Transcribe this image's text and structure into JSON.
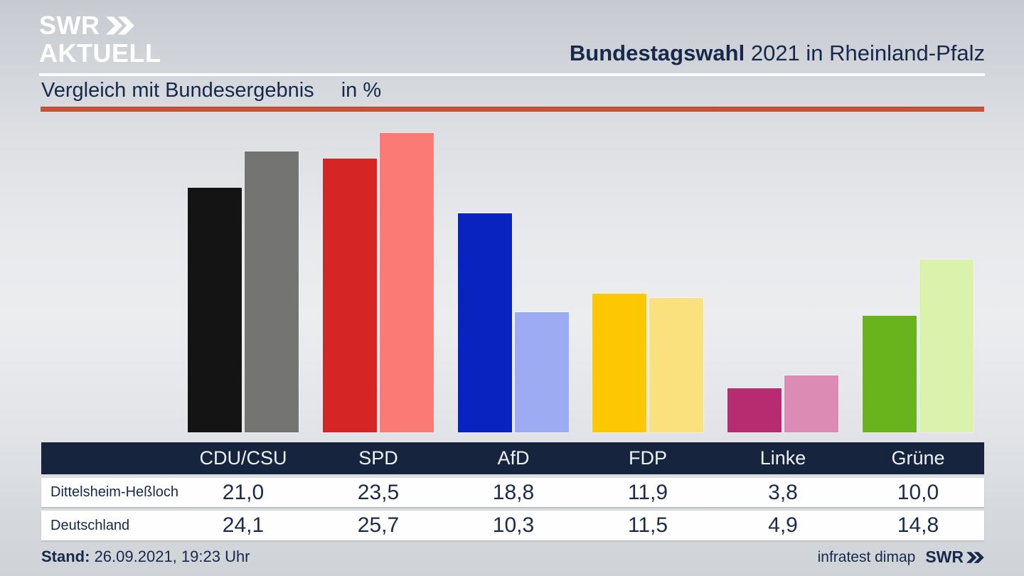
{
  "header": {
    "logo_line1": "SWR",
    "logo_line2": "AKTUELL",
    "title_bold": "Bundestagswahl",
    "title_rest": " 2021 in Rheinland-Pfalz"
  },
  "subtitle": {
    "text": "Vergleich mit Bundesergebnis",
    "unit": "in %"
  },
  "chart_data": {
    "type": "bar",
    "title": "Vergleich mit Bundesergebnis in %",
    "xlabel": "",
    "ylabel": "",
    "unit": "%",
    "ylim": [
      0,
      27
    ],
    "grid": false,
    "legend_position": "table-below",
    "categories": [
      "CDU/CSU",
      "SPD",
      "AfD",
      "FDP",
      "Linke",
      "Grüne"
    ],
    "series": [
      {
        "name": "Dittelsheim-Heßloch",
        "values": [
          21.0,
          23.5,
          18.8,
          11.9,
          3.8,
          10.0
        ],
        "display": [
          "21,0",
          "23,5",
          "18,8",
          "11,9",
          "3,8",
          "10,0"
        ]
      },
      {
        "name": "Deutschland",
        "values": [
          24.1,
          25.7,
          10.3,
          11.5,
          4.9,
          14.8
        ],
        "display": [
          "24,1",
          "25,7",
          "10,3",
          "11,5",
          "4,9",
          "14,8"
        ]
      }
    ],
    "bar_colors": [
      [
        "#141414",
        "#747473"
      ],
      [
        "#d52525",
        "#fc7a76"
      ],
      [
        "#0823c0",
        "#9dabf3"
      ],
      [
        "#fdc704",
        "#fbe07e"
      ],
      [
        "#b72b71",
        "#dc8bb5"
      ],
      [
        "#69b41d",
        "#daf2ab"
      ]
    ]
  },
  "footer": {
    "stand_label": "Stand:",
    "stand_value": " 26.09.2021, 19:23 Uhr",
    "source": "infratest dimap",
    "brand": "SWR"
  },
  "colors": {
    "accent_red_line": "#cd5439",
    "navy_text": "#16294b",
    "table_header_bg": "#17243d"
  }
}
